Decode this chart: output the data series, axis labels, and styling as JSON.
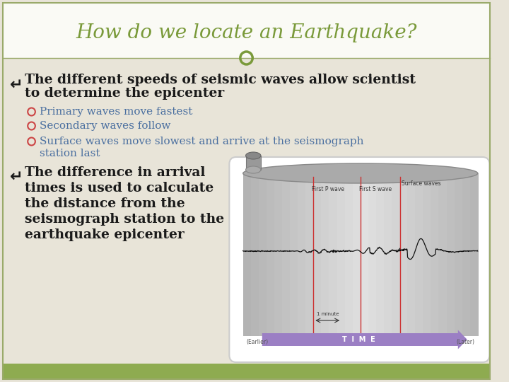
{
  "title": "How do we locate an Earthquake?",
  "title_color": "#7A9A3A",
  "bg_color": "#E8E4D8",
  "header_bg": "#FAFAF5",
  "footer_color": "#8EAB50",
  "bullet_color": "#1A1A1A",
  "sub_bullet_color": "#4A6FA0",
  "circle_color": "#7A9A3A",
  "border_color": "#9AAA6A",
  "main_bullet1": "The different speeds of seismic waves allow scientist\nto determine the epicenter",
  "main_bullet2_line1": "The difference in arrival",
  "main_bullet2_line2": "times is used to calculate",
  "main_bullet2_line3": "the distance from the",
  "main_bullet2_line4": "seismograph station to the",
  "main_bullet2_line5": "earthquake epicenter",
  "sub_bullets": [
    "Primary waves move fastest",
    "Secondary waves follow",
    "Surface waves move slowest and arrive at the seismograph\nstation last"
  ],
  "sub_bullet_marker_color": "#CC4444"
}
